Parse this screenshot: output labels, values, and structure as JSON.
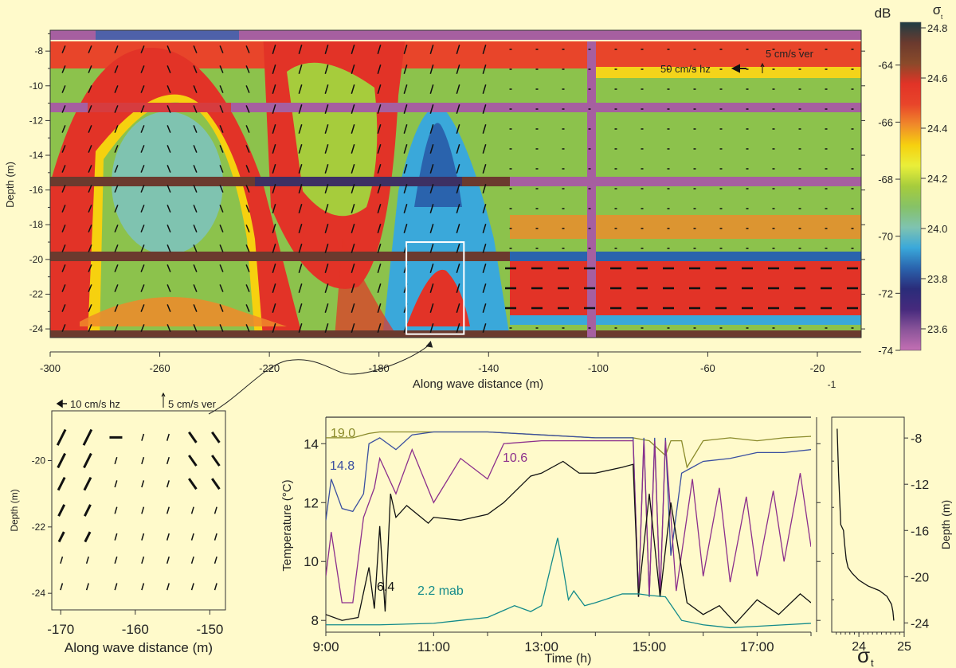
{
  "chart_data": [
    {
      "id": "echogram",
      "type": "heatmap",
      "title": "",
      "xlabel": "Along wave distance (m)",
      "ylabel": "Depth (m)",
      "xlim": [
        -300,
        -4
      ],
      "ylim": [
        -24.5,
        -6.8
      ],
      "xticks": [
        -300,
        -260,
        -220,
        -180,
        -140,
        -100,
        -60,
        -20
      ],
      "xtick_labels": [
        "-300",
        "-260",
        "-220",
        "-180",
        "-140",
        "-100",
        "-60",
        "-20"
      ],
      "extra_label": "-1",
      "yticks": [
        -8,
        -10,
        -12,
        -14,
        -16,
        -18,
        -20,
        -22,
        -24
      ],
      "ytick_labels": [
        "-8",
        "-10",
        "-12",
        "-14",
        "-16",
        "-18",
        "-20",
        "-22",
        "-24"
      ],
      "annotations": {
        "hz_scale": "50 cm/s hz",
        "ver_scale": "5 cm/s ver"
      },
      "inset_box": {
        "x": [
          -170,
          -149
        ],
        "depth": [
          -19,
          -24.3
        ]
      },
      "colorbar": {
        "left_label": "dB",
        "right_label": "σ",
        "right_label_sub": "t",
        "db_ticks": [
          "-64",
          "-66",
          "-68",
          "-70",
          "-72",
          "-74"
        ],
        "db_values": [
          -64,
          -66,
          -68,
          -70,
          -72,
          -74
        ],
        "db_range": [
          -62.5,
          -74
        ],
        "sigma_ticks": [
          "24.8",
          "24.6",
          "24.4",
          "24.2",
          "24.0",
          "23.8",
          "23.6"
        ],
        "sigma_values": [
          24.8,
          24.6,
          24.4,
          24.2,
          24.0,
          23.8,
          23.6
        ],
        "colors": [
          "#1f3d44",
          "#6b3a2e",
          "#8a4a2a",
          "#e23327",
          "#e8452a",
          "#f08a2a",
          "#f6d10f",
          "#e9ef3a",
          "#a6cc3c",
          "#86c267",
          "#7fc3b0",
          "#3aa8da",
          "#2a63ad",
          "#2a2c7a",
          "#462a7d",
          "#8b559a",
          "#c46fb3"
        ]
      }
    },
    {
      "id": "inset-vectors",
      "type": "scatter",
      "xlabel": "Along wave distance (m)",
      "ylabel": "Depth (m)",
      "xlim": [
        -171.2,
        -147.9
      ],
      "ylim": [
        -24.5,
        -18.5
      ],
      "xticks": [
        -170,
        -160,
        -150
      ],
      "xtick_labels": [
        "-170",
        "-160",
        "-150"
      ],
      "yticks": [
        -20,
        -22,
        -24
      ],
      "ytick_labels": [
        "-20",
        "-22",
        "-24"
      ],
      "annotations": {
        "hz_scale": "10 cm/s hz",
        "ver_scale": "5 cm/s ver"
      },
      "columns_x": [
        -169.9,
        -166.4,
        -162.6,
        -159.0,
        -155.6,
        -152.3,
        -149.2
      ],
      "rows_depth": [
        -19.3,
        -20.0,
        -20.7,
        -21.5,
        -22.3,
        -23.0,
        -23.8
      ]
    },
    {
      "id": "temperature",
      "type": "line",
      "xlabel": "Time (h)",
      "ylabel": "Temperature (°C)",
      "xlim": [
        9.0,
        18.0
      ],
      "ylim": [
        7.6,
        14.9
      ],
      "xticks": [
        9,
        11,
        13,
        15,
        17
      ],
      "xtick_labels": [
        "9:00",
        "11:00",
        "13:00",
        "15:00",
        "17:00"
      ],
      "yticks": [
        8,
        10,
        12,
        14
      ],
      "ytick_labels": [
        "8",
        "10",
        "12",
        "14"
      ],
      "series": [
        {
          "name": "19.0",
          "color": "#8a8a2a",
          "x": [
            9.0,
            9.5,
            9.8,
            10.0,
            11.0,
            12.0,
            13.0,
            14.0,
            14.7,
            15.0,
            15.3,
            15.4,
            15.6,
            15.7,
            16.0,
            16.5,
            17.0,
            17.5,
            18.0
          ],
          "y": [
            14.2,
            14.2,
            14.35,
            14.4,
            14.4,
            14.4,
            14.3,
            14.2,
            14.2,
            14.1,
            13.6,
            14.1,
            14.1,
            13.2,
            14.1,
            14.2,
            14.1,
            14.2,
            14.25
          ]
        },
        {
          "name": "14.8",
          "color": "#3a4fa0",
          "x": [
            9.0,
            9.1,
            9.3,
            9.5,
            9.7,
            9.8,
            10.0,
            10.3,
            10.6,
            11.0,
            12.0,
            13.0,
            14.0,
            14.7,
            14.8,
            14.9,
            15.0,
            15.1,
            15.2,
            15.3,
            15.4,
            15.6,
            15.8,
            16.0,
            16.5,
            17.0,
            17.5,
            18.0
          ],
          "y": [
            11.4,
            12.8,
            11.8,
            11.7,
            12.3,
            14.0,
            14.2,
            13.8,
            14.3,
            14.4,
            14.4,
            14.3,
            14.2,
            14.2,
            8.8,
            14.2,
            8.8,
            14.2,
            8.8,
            14.2,
            10.2,
            13.0,
            13.2,
            13.4,
            13.5,
            13.7,
            13.7,
            13.8
          ]
        },
        {
          "name": "10.6",
          "color": "#8c2f8c",
          "x": [
            9.0,
            9.1,
            9.3,
            9.5,
            9.7,
            9.9,
            10.0,
            10.3,
            10.6,
            11.0,
            11.5,
            12.0,
            12.3,
            13.0,
            14.0,
            14.7,
            14.8,
            14.9,
            15.0,
            15.1,
            15.2,
            15.3,
            15.5,
            15.8,
            16.0,
            16.3,
            16.5,
            16.8,
            17.0,
            17.3,
            17.5,
            17.8,
            18.0
          ],
          "y": [
            9.5,
            11.0,
            8.6,
            8.6,
            11.5,
            12.5,
            13.5,
            12.3,
            13.8,
            12.0,
            13.5,
            12.8,
            14.0,
            14.1,
            14.1,
            14.1,
            8.8,
            14.1,
            8.8,
            14.1,
            8.8,
            14.1,
            9.0,
            12.8,
            9.5,
            12.5,
            9.3,
            12.2,
            9.5,
            12.4,
            10.0,
            13.0,
            10.5
          ]
        },
        {
          "name": "6.4",
          "color": "#111111",
          "x": [
            9.0,
            9.3,
            9.6,
            9.8,
            9.9,
            10.0,
            10.1,
            10.2,
            10.3,
            10.5,
            10.9,
            11.0,
            11.5,
            12.0,
            12.3,
            12.8,
            13.0,
            13.4,
            13.7,
            14.0,
            14.5,
            14.7,
            14.8,
            15.0,
            15.2,
            15.4,
            15.7,
            16.0,
            16.3,
            16.6,
            17.0,
            17.4,
            17.8,
            18.0
          ],
          "y": [
            8.2,
            8.0,
            8.1,
            9.8,
            8.4,
            11.2,
            8.3,
            12.3,
            11.5,
            11.9,
            11.3,
            11.5,
            11.4,
            11.6,
            12.0,
            12.9,
            13.0,
            13.4,
            13.0,
            13.0,
            13.2,
            13.3,
            8.8,
            12.3,
            8.8,
            12.0,
            8.6,
            8.2,
            8.5,
            7.9,
            8.7,
            8.2,
            8.9,
            8.6
          ]
        },
        {
          "name": "2.2 mab",
          "color": "#138a8a",
          "x": [
            9.0,
            10.0,
            11.0,
            11.5,
            12.0,
            12.5,
            12.8,
            13.0,
            13.3,
            13.4,
            13.5,
            13.6,
            13.8,
            14.0,
            14.5,
            14.8,
            15.0,
            15.3,
            15.6,
            16.0,
            16.5,
            17.0,
            17.5,
            18.0
          ],
          "y": [
            7.85,
            7.85,
            7.9,
            8.0,
            8.1,
            8.5,
            8.3,
            8.5,
            10.8,
            9.8,
            8.7,
            9.0,
            8.5,
            8.6,
            8.9,
            8.9,
            8.85,
            8.8,
            8.0,
            7.85,
            7.75,
            7.8,
            7.85,
            7.9
          ]
        }
      ],
      "labels": [
        {
          "text": "19.0",
          "series": "19.0"
        },
        {
          "text": "14.8",
          "series": "14.8"
        },
        {
          "text": "10.6",
          "series": "10.6"
        },
        {
          "text": "6.4",
          "series": "6.4"
        },
        {
          "text": "2.2 mab",
          "series": "2.2 mab"
        }
      ]
    },
    {
      "id": "sigma-profile",
      "type": "line",
      "xlabel": "σ",
      "xlabel_sub": "t",
      "ylabel": "Depth (m)",
      "xlim": [
        23.4,
        25.0
      ],
      "ylim": [
        -24.8,
        -6.2
      ],
      "xticks": [
        24,
        25
      ],
      "xtick_labels": [
        "24",
        "25"
      ],
      "yticks": [
        -8,
        -12,
        -16,
        -20,
        -24
      ],
      "ytick_labels": [
        "-8",
        "-12",
        "-16",
        "-20",
        "-24"
      ],
      "series": [
        {
          "name": "sigma_t",
          "x": [
            23.52,
            23.55,
            23.6,
            23.66,
            23.68,
            23.72,
            23.76,
            23.85,
            24.0,
            24.2,
            24.45,
            24.62,
            24.72,
            24.75,
            24.77
          ],
          "y": [
            -7.2,
            -11.0,
            -15.5,
            -16.0,
            -17.0,
            -18.5,
            -19.2,
            -19.7,
            -20.3,
            -20.8,
            -21.2,
            -21.7,
            -22.4,
            -23.0,
            -23.8
          ]
        }
      ]
    }
  ]
}
